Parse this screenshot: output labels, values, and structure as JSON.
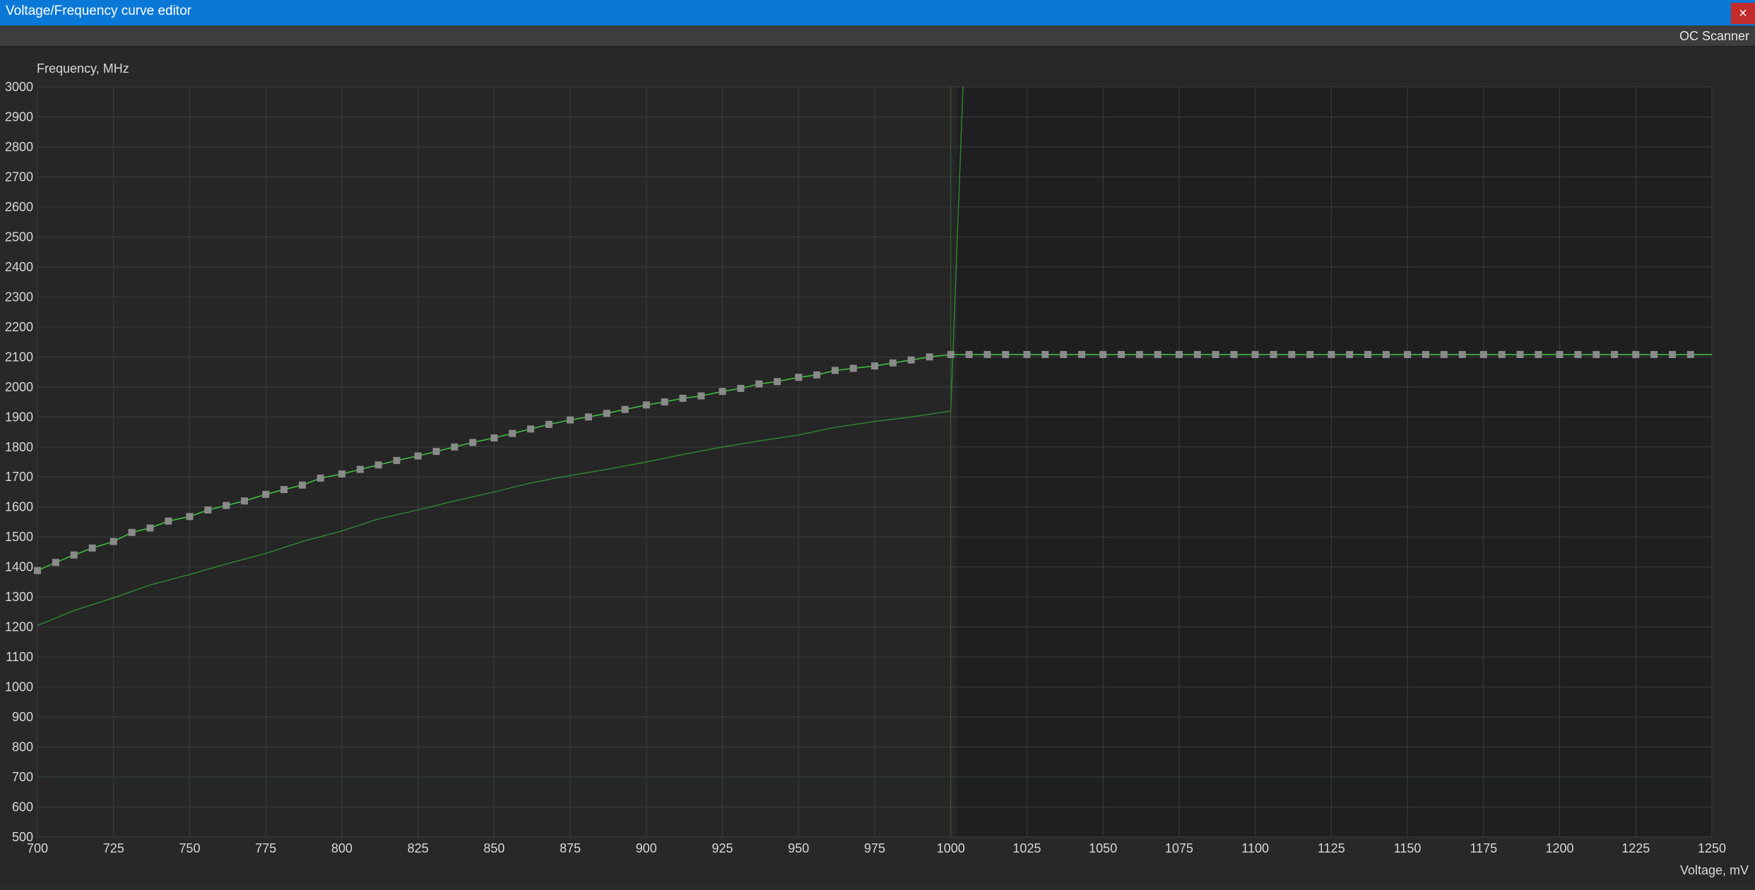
{
  "window": {
    "title": "Voltage/Frequency curve editor",
    "close_glyph": "×"
  },
  "toolbar": {
    "oc_scanner_label": "OC Scanner"
  },
  "colors": {
    "accent_title": "#0a78d7",
    "close": "#c42b2b",
    "curve": "#3fbf3f",
    "ghost_curve": "#2f8a2f",
    "point": "#8a8a8a",
    "grid": "#3e3e3e"
  },
  "chart_data": {
    "type": "line",
    "ylabel": "Frequency, MHz",
    "xlabel": "Voltage, mV",
    "xlim": [
      700,
      1250
    ],
    "ylim": [
      500,
      3000
    ],
    "x_ticks": [
      700,
      725,
      750,
      775,
      800,
      825,
      850,
      875,
      900,
      925,
      950,
      975,
      1000,
      1025,
      1050,
      1075,
      1100,
      1125,
      1150,
      1175,
      1200,
      1225,
      1250
    ],
    "y_ticks": [
      500,
      600,
      700,
      800,
      900,
      1000,
      1100,
      1200,
      1300,
      1400,
      1500,
      1600,
      1700,
      1800,
      1900,
      2000,
      2100,
      2200,
      2300,
      2400,
      2500,
      2600,
      2700,
      2800,
      2900,
      3000
    ],
    "grid": true,
    "shaded_region_from_voltage": 1002,
    "vertical_marker_voltage": 1000,
    "series": [
      {
        "role": "edited-curve",
        "x": [
          700,
          706,
          712,
          718,
          725,
          731,
          737,
          743,
          750,
          756,
          762,
          768,
          775,
          781,
          787,
          793,
          800,
          806,
          812,
          818,
          825,
          831,
          837,
          843,
          850,
          856,
          862,
          868,
          875,
          881,
          887,
          893,
          900,
          906,
          912,
          918,
          925,
          931,
          937,
          943,
          950,
          956,
          962,
          968,
          975,
          981,
          987,
          993,
          1000,
          1006,
          1012,
          1018,
          1025,
          1031,
          1037,
          1043,
          1050,
          1056,
          1062,
          1068,
          1075,
          1081,
          1087,
          1093,
          1100,
          1106,
          1112,
          1118,
          1125,
          1131,
          1137,
          1143,
          1150,
          1156,
          1162,
          1168,
          1175,
          1181,
          1187,
          1193,
          1200,
          1206,
          1212,
          1218,
          1225,
          1231,
          1237,
          1243
        ],
        "y": [
          1388,
          1415,
          1440,
          1463,
          1485,
          1515,
          1530,
          1553,
          1568,
          1590,
          1605,
          1620,
          1642,
          1658,
          1673,
          1696,
          1710,
          1725,
          1740,
          1755,
          1770,
          1785,
          1800,
          1815,
          1830,
          1845,
          1860,
          1875,
          1890,
          1900,
          1912,
          1925,
          1940,
          1950,
          1962,
          1970,
          1985,
          1995,
          2010,
          2018,
          2032,
          2040,
          2055,
          2062,
          2070,
          2080,
          2090,
          2100,
          2108,
          2108,
          2108,
          2108,
          2108,
          2108,
          2108,
          2108,
          2108,
          2108,
          2108,
          2108,
          2108,
          2108,
          2108,
          2108,
          2108,
          2108,
          2108,
          2108,
          2108,
          2108,
          2108,
          2108,
          2108,
          2108,
          2108,
          2108,
          2108,
          2108,
          2108,
          2108,
          2108,
          2108,
          2108,
          2108,
          2108,
          2108,
          2108,
          2108
        ]
      },
      {
        "role": "reference-curve",
        "x": [
          700,
          712,
          725,
          737,
          750,
          762,
          775,
          787,
          800,
          812,
          825,
          837,
          850,
          862,
          875,
          887,
          900,
          912,
          925,
          937,
          950,
          962,
          975,
          987,
          1000,
          1004
        ],
        "y": [
          1205,
          1255,
          1297,
          1340,
          1375,
          1410,
          1445,
          1485,
          1520,
          1560,
          1590,
          1620,
          1650,
          1680,
          1705,
          1725,
          1750,
          1775,
          1800,
          1820,
          1840,
          1865,
          1885,
          1900,
          1920,
          3000
        ]
      }
    ]
  }
}
